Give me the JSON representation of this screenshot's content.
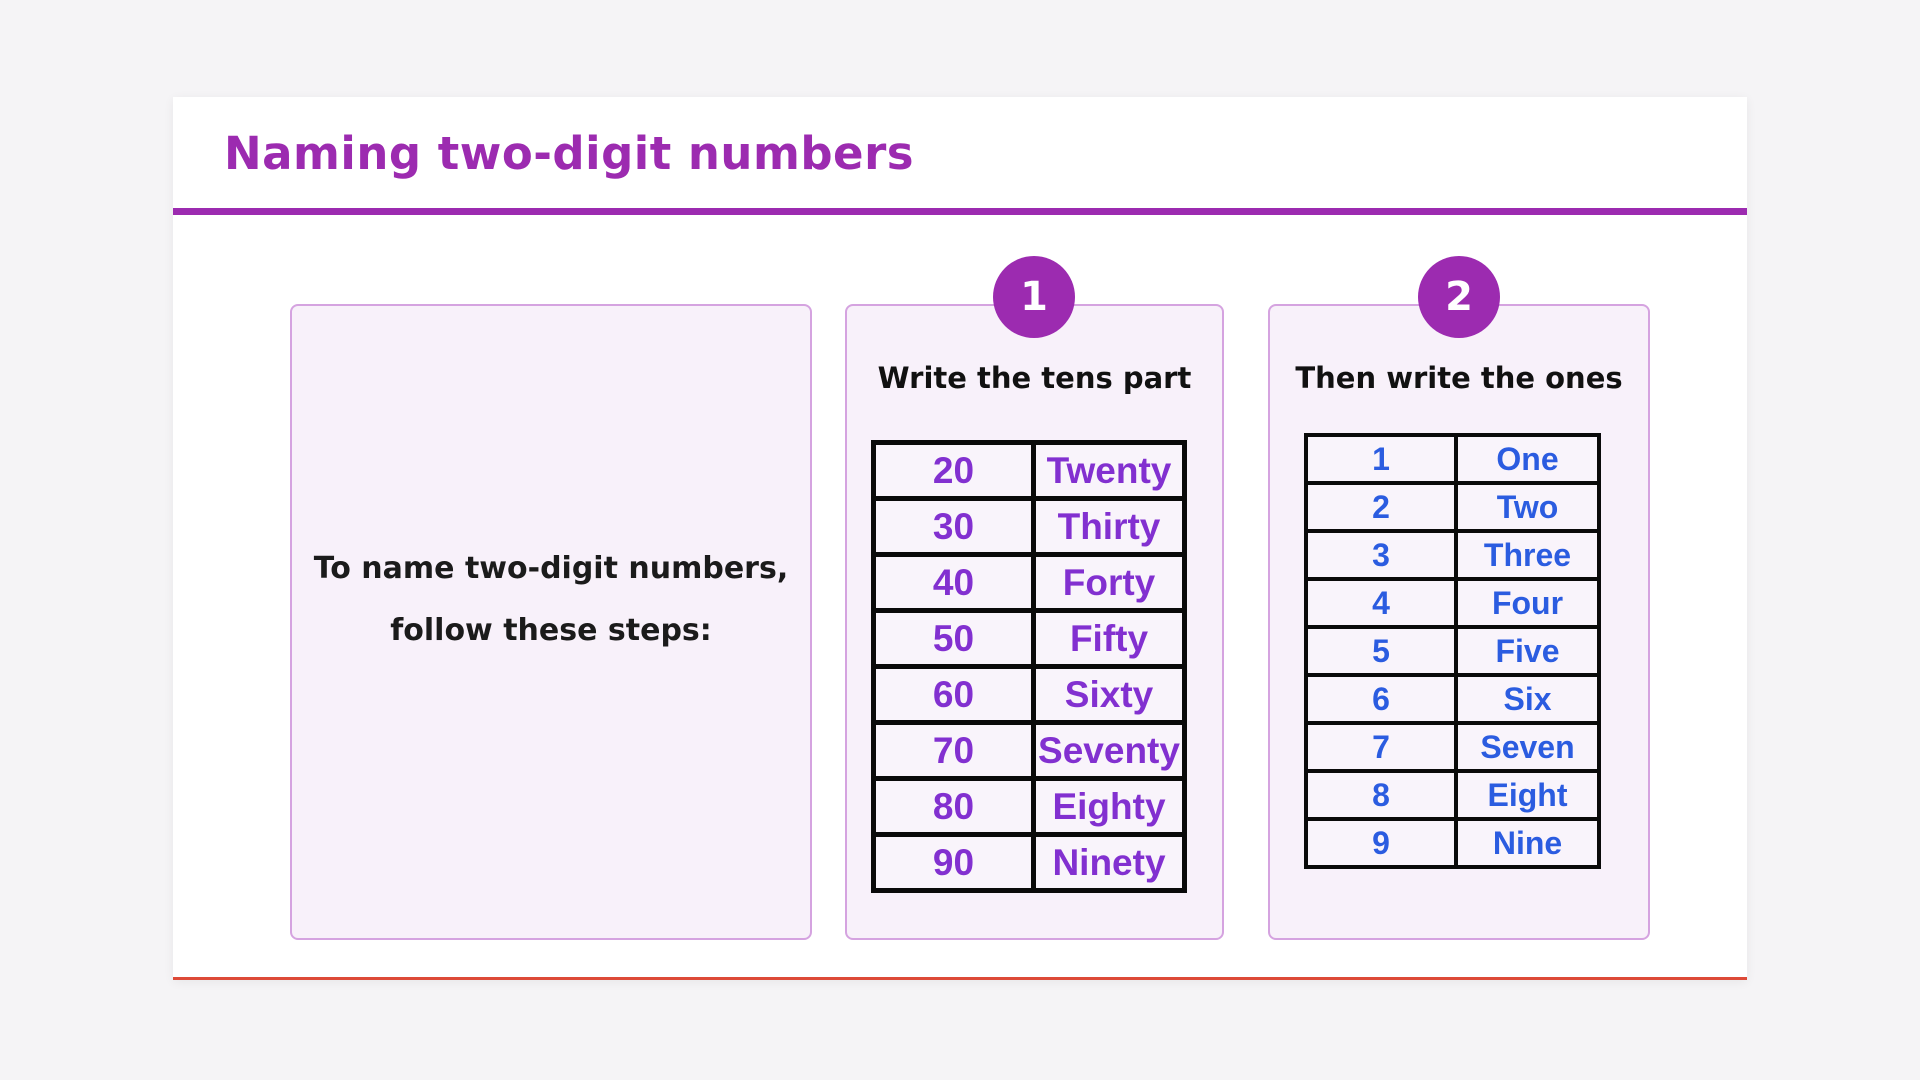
{
  "title": "Naming two-digit numbers",
  "intro": {
    "line1": "To name two-digit numbers,",
    "line2": "follow these steps:"
  },
  "steps": [
    {
      "badge": "1",
      "heading": "Write the tens part",
      "rows": [
        [
          "20",
          "Twenty"
        ],
        [
          "30",
          "Thirty"
        ],
        [
          "40",
          "Forty"
        ],
        [
          "50",
          "Fifty"
        ],
        [
          "60",
          "Sixty"
        ],
        [
          "70",
          "Seventy"
        ],
        [
          "80",
          "Eighty"
        ],
        [
          "90",
          "Ninety"
        ]
      ]
    },
    {
      "badge": "2",
      "heading": "Then write the ones",
      "rows": [
        [
          "1",
          "One"
        ],
        [
          "2",
          "Two"
        ],
        [
          "3",
          "Three"
        ],
        [
          "4",
          "Four"
        ],
        [
          "5",
          "Five"
        ],
        [
          "6",
          "Six"
        ],
        [
          "7",
          "Seven"
        ],
        [
          "8",
          "Eight"
        ],
        [
          "9",
          "Nine"
        ]
      ]
    }
  ],
  "colors": {
    "accent_purple": "#9c2bb0",
    "tens_text_purple": "#8230d0",
    "ones_text_blue": "#2b5ce0",
    "panel_background": "#f8f1fa",
    "panel_border": "#d5a3e0",
    "card_bottom_line": "#dd4a38",
    "table_border_black": "#0a0a0a"
  }
}
